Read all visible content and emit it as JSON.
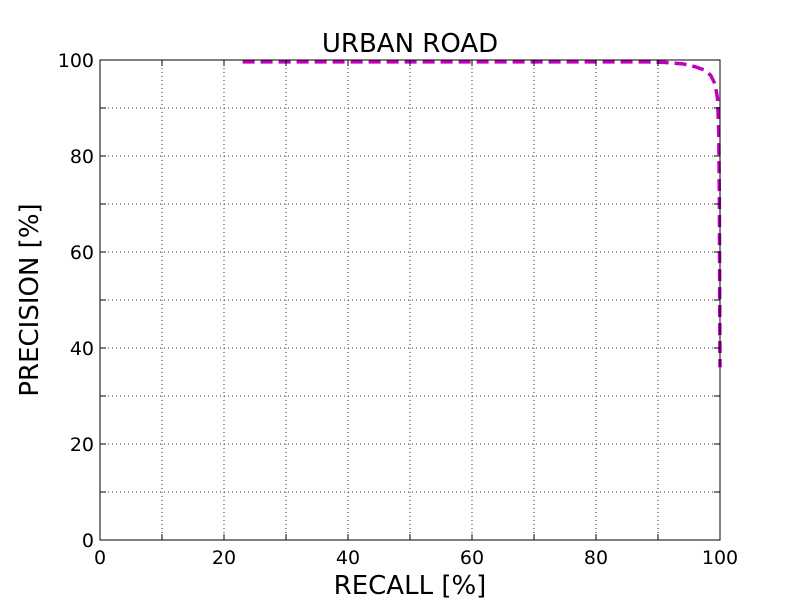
{
  "chart_data": {
    "type": "line",
    "title": "URBAN ROAD",
    "xlabel": "RECALL [%]",
    "ylabel": "PRECISION [%]",
    "xlim": [
      0,
      100
    ],
    "ylim": [
      0,
      100
    ],
    "x_ticks": [
      0,
      20,
      40,
      60,
      80,
      100
    ],
    "y_ticks": [
      0,
      20,
      40,
      60,
      80,
      100
    ],
    "grid": true,
    "legend": "none",
    "series": [
      {
        "color": "#bf00bf",
        "line_style": "dashed",
        "x": [
          23,
          40,
          60,
          80,
          88,
          91,
          94,
          96,
          97.5,
          98.5,
          99.2,
          99.6,
          99.8,
          99.9,
          99.95,
          100
        ],
        "y": [
          99.6,
          99.6,
          99.6,
          99.6,
          99.6,
          99.5,
          99.2,
          98.6,
          97.9,
          96.8,
          95,
          92,
          85,
          70,
          50,
          36
        ]
      }
    ]
  }
}
